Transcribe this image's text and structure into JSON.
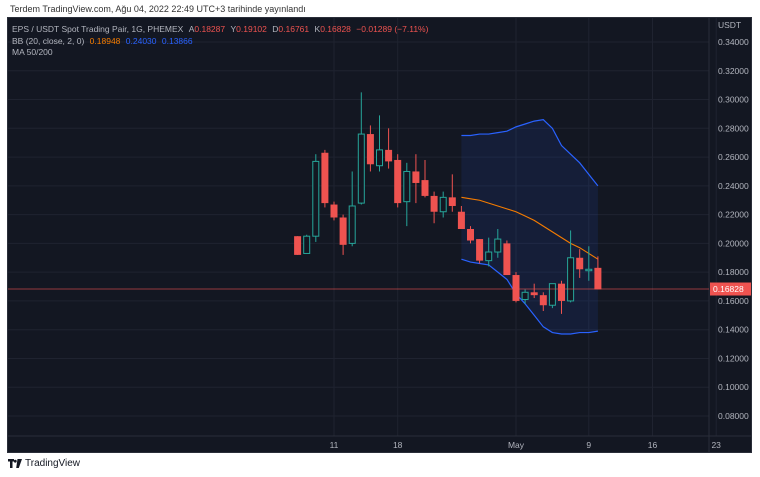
{
  "header": {
    "published_text": "Terdem TradingView.com, Ağu 04, 2022 22:49 UTC+3 tarihinde yayınlandı"
  },
  "legend": {
    "symbol": "EPS / USDT Spot Trading Pair, 1G, PHEMEX",
    "o_label": "A",
    "o_value": "0.18287",
    "h_label": "Y",
    "h_value": "0.19102",
    "l_label": "D",
    "l_value": "0.16761",
    "c_label": "K",
    "c_value": "0.16828",
    "change": "−0.01289 (−7.11%)",
    "bb_label": "BB (20, close, 2, 0)",
    "bb_basis": "0.18948",
    "bb_upper": "0.24030",
    "bb_lower": "0.13866",
    "ma_label": "MA 50/200"
  },
  "footer": {
    "brand": "TradingView"
  },
  "colors": {
    "background": "#131722",
    "up": "#26a69a",
    "down": "#ef5350",
    "basis": "#f57c00",
    "band": "#2962ff",
    "text": "#b2b5be"
  },
  "chart_data": {
    "type": "candlestick",
    "currency_label": "USDT",
    "ylim": [
      0.07,
      0.35
    ],
    "y_ticks": [
      "0.34000",
      "0.32000",
      "0.30000",
      "0.28000",
      "0.26000",
      "0.24000",
      "0.22000",
      "0.20000",
      "0.18000",
      "0.16000",
      "0.14000",
      "0.12000",
      "0.10000",
      "0.08000"
    ],
    "x_ticks": [
      {
        "label": "11",
        "date": "2022-04-11"
      },
      {
        "label": "18",
        "date": "2022-04-18"
      },
      {
        "label": "May",
        "date": "2022-05-01"
      },
      {
        "label": "9",
        "date": "2022-05-09"
      },
      {
        "label": "16",
        "date": "2022-05-16"
      },
      {
        "label": "23",
        "date": "2022-05-23"
      }
    ],
    "last_price": "0.16828",
    "candles": [
      {
        "date": "2022-04-07",
        "o": 0.205,
        "h": 0.205,
        "l": 0.192,
        "c": 0.192
      },
      {
        "date": "2022-04-08",
        "o": 0.193,
        "h": 0.206,
        "l": 0.193,
        "c": 0.205
      },
      {
        "date": "2022-04-09",
        "o": 0.205,
        "h": 0.262,
        "l": 0.201,
        "c": 0.257
      },
      {
        "date": "2022-04-10",
        "o": 0.263,
        "h": 0.265,
        "l": 0.225,
        "c": 0.228
      },
      {
        "date": "2022-04-11",
        "o": 0.227,
        "h": 0.229,
        "l": 0.216,
        "c": 0.218
      },
      {
        "date": "2022-04-12",
        "o": 0.218,
        "h": 0.22,
        "l": 0.192,
        "c": 0.199
      },
      {
        "date": "2022-04-13",
        "o": 0.2,
        "h": 0.25,
        "l": 0.198,
        "c": 0.226
      },
      {
        "date": "2022-04-14",
        "o": 0.228,
        "h": 0.305,
        "l": 0.227,
        "c": 0.276
      },
      {
        "date": "2022-04-15",
        "o": 0.276,
        "h": 0.282,
        "l": 0.25,
        "c": 0.255
      },
      {
        "date": "2022-04-16",
        "o": 0.254,
        "h": 0.289,
        "l": 0.25,
        "c": 0.265
      },
      {
        "date": "2022-04-17",
        "o": 0.265,
        "h": 0.28,
        "l": 0.252,
        "c": 0.257
      },
      {
        "date": "2022-04-18",
        "o": 0.258,
        "h": 0.262,
        "l": 0.225,
        "c": 0.228
      },
      {
        "date": "2022-04-19",
        "o": 0.229,
        "h": 0.256,
        "l": 0.212,
        "c": 0.25
      },
      {
        "date": "2022-04-20",
        "o": 0.25,
        "h": 0.262,
        "l": 0.228,
        "c": 0.242
      },
      {
        "date": "2022-04-21",
        "o": 0.244,
        "h": 0.258,
        "l": 0.232,
        "c": 0.233
      },
      {
        "date": "2022-04-22",
        "o": 0.233,
        "h": 0.236,
        "l": 0.214,
        "c": 0.222
      },
      {
        "date": "2022-04-23",
        "o": 0.222,
        "h": 0.236,
        "l": 0.218,
        "c": 0.232
      },
      {
        "date": "2022-04-24",
        "o": 0.232,
        "h": 0.248,
        "l": 0.222,
        "c": 0.226
      },
      {
        "date": "2022-04-25",
        "o": 0.222,
        "h": 0.226,
        "l": 0.21,
        "c": 0.21
      },
      {
        "date": "2022-04-26",
        "o": 0.21,
        "h": 0.212,
        "l": 0.2,
        "c": 0.202
      },
      {
        "date": "2022-04-27",
        "o": 0.203,
        "h": 0.203,
        "l": 0.186,
        "c": 0.188
      },
      {
        "date": "2022-04-28",
        "o": 0.188,
        "h": 0.204,
        "l": 0.184,
        "c": 0.194
      },
      {
        "date": "2022-04-29",
        "o": 0.194,
        "h": 0.21,
        "l": 0.19,
        "c": 0.203
      },
      {
        "date": "2022-04-30",
        "o": 0.2,
        "h": 0.202,
        "l": 0.178,
        "c": 0.178
      },
      {
        "date": "2022-05-01",
        "o": 0.178,
        "h": 0.18,
        "l": 0.159,
        "c": 0.16
      },
      {
        "date": "2022-05-02",
        "o": 0.161,
        "h": 0.168,
        "l": 0.158,
        "c": 0.166
      },
      {
        "date": "2022-05-03",
        "o": 0.166,
        "h": 0.172,
        "l": 0.162,
        "c": 0.164
      },
      {
        "date": "2022-05-04",
        "o": 0.164,
        "h": 0.166,
        "l": 0.153,
        "c": 0.157
      },
      {
        "date": "2022-05-05",
        "o": 0.157,
        "h": 0.172,
        "l": 0.155,
        "c": 0.172
      },
      {
        "date": "2022-05-06",
        "o": 0.172,
        "h": 0.174,
        "l": 0.151,
        "c": 0.16
      },
      {
        "date": "2022-05-07",
        "o": 0.16,
        "h": 0.209,
        "l": 0.159,
        "c": 0.19
      },
      {
        "date": "2022-05-08",
        "o": 0.19,
        "h": 0.196,
        "l": 0.176,
        "c": 0.182
      },
      {
        "date": "2022-05-09",
        "o": 0.181,
        "h": 0.198,
        "l": 0.174,
        "c": 0.182
      },
      {
        "date": "2022-05-10",
        "o": 0.183,
        "h": 0.191,
        "l": 0.168,
        "c": 0.168
      }
    ],
    "bollinger": [
      {
        "date": "2022-04-25",
        "basis": 0.232,
        "upper": 0.275,
        "lower": 0.189
      },
      {
        "date": "2022-04-26",
        "basis": 0.231,
        "upper": 0.275,
        "lower": 0.187
      },
      {
        "date": "2022-04-27",
        "basis": 0.23,
        "upper": 0.276,
        "lower": 0.186
      },
      {
        "date": "2022-04-28",
        "basis": 0.228,
        "upper": 0.276,
        "lower": 0.185
      },
      {
        "date": "2022-04-29",
        "basis": 0.226,
        "upper": 0.277,
        "lower": 0.18
      },
      {
        "date": "2022-04-30",
        "basis": 0.224,
        "upper": 0.278,
        "lower": 0.175
      },
      {
        "date": "2022-05-01",
        "basis": 0.222,
        "upper": 0.281,
        "lower": 0.165
      },
      {
        "date": "2022-05-02",
        "basis": 0.219,
        "upper": 0.283,
        "lower": 0.158
      },
      {
        "date": "2022-05-03",
        "basis": 0.216,
        "upper": 0.285,
        "lower": 0.15
      },
      {
        "date": "2022-05-04",
        "basis": 0.212,
        "upper": 0.286,
        "lower": 0.142
      },
      {
        "date": "2022-05-05",
        "basis": 0.208,
        "upper": 0.28,
        "lower": 0.138
      },
      {
        "date": "2022-05-06",
        "basis": 0.204,
        "upper": 0.268,
        "lower": 0.137
      },
      {
        "date": "2022-05-07",
        "basis": 0.2,
        "upper": 0.262,
        "lower": 0.137
      },
      {
        "date": "2022-05-08",
        "basis": 0.197,
        "upper": 0.256,
        "lower": 0.138
      },
      {
        "date": "2022-05-09",
        "basis": 0.193,
        "upper": 0.248,
        "lower": 0.138
      },
      {
        "date": "2022-05-10",
        "basis": 0.189,
        "upper": 0.24,
        "lower": 0.139
      }
    ],
    "grid": true
  }
}
